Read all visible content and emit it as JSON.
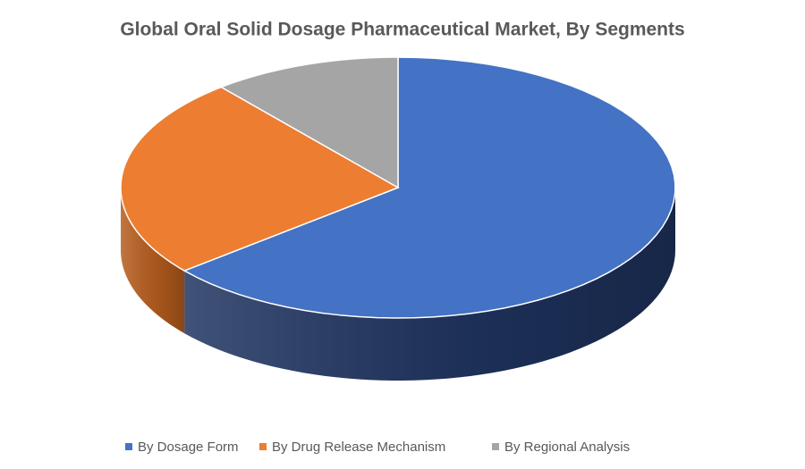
{
  "chart_data": {
    "type": "pie",
    "title": "Global Oral Solid Dosage Pharmaceutical Market, By Segments",
    "categories": [
      "By Dosage Form",
      "By Drug Release Mechanism",
      "By Regional Analysis"
    ],
    "values": [
      64,
      25,
      11
    ],
    "colors": [
      "#4472c4",
      "#ed7d31",
      "#a5a5a5"
    ],
    "side_colors": [
      "#1f3460",
      "#b85e1e",
      "#7a7a7a"
    ],
    "legend": "bottom"
  }
}
